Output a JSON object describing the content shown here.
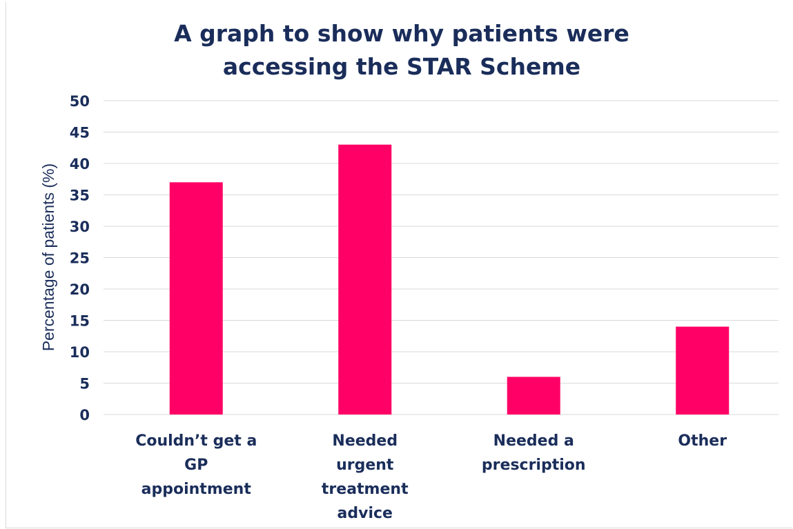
{
  "chart_data": {
    "type": "bar",
    "title_lines": [
      "A graph to show why patients were",
      "accessing the STAR Scheme"
    ],
    "xlabel": "",
    "ylabel": "Percentage of patients (%)",
    "categories": [
      [
        "Couldn’t get a",
        "GP",
        "appointment"
      ],
      [
        "Needed",
        "urgent",
        "treatment",
        "advice"
      ],
      [
        "Needed a",
        "prescription"
      ],
      [
        "Other"
      ]
    ],
    "values": [
      37,
      43,
      6,
      14
    ],
    "ylim": [
      0,
      50
    ],
    "yticks": [
      "0",
      "5",
      "10",
      "15",
      "20",
      "25",
      "30",
      "35",
      "40",
      "45",
      "50"
    ],
    "grid": true,
    "legend": false,
    "bar_color": "#ff0066",
    "text_color": "#1a2d5a",
    "grid_color": "#d9d9d9"
  }
}
